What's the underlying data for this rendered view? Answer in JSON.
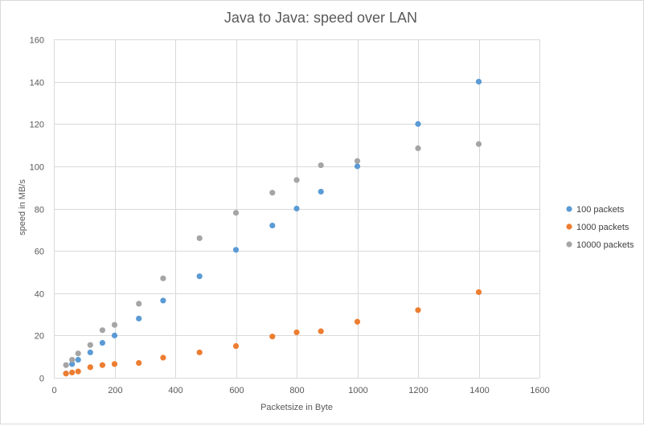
{
  "chart_data": {
    "type": "scatter",
    "title": "Java to Java: speed over LAN",
    "xlabel": "Packetsize in Byte",
    "ylabel": "speed in MB/s",
    "xlim": [
      0,
      1600
    ],
    "ylim": [
      0,
      160
    ],
    "xticks": [
      0,
      200,
      400,
      600,
      800,
      1000,
      1200,
      1400,
      1600
    ],
    "yticks": [
      0,
      20,
      40,
      60,
      80,
      100,
      120,
      140,
      160
    ],
    "grid": "vertical and horizontal",
    "legend_position": "right",
    "series": [
      {
        "name": "100 packets",
        "color": "#5b9bd5",
        "points": [
          [
            40,
            2
          ],
          [
            60,
            6.5
          ],
          [
            80,
            8.5
          ],
          [
            120,
            12
          ],
          [
            160,
            16.5
          ],
          [
            200,
            20
          ],
          [
            280,
            28
          ],
          [
            360,
            36.5
          ],
          [
            480,
            48
          ],
          [
            600,
            60.5
          ],
          [
            720,
            72
          ],
          [
            800,
            80
          ],
          [
            880,
            88
          ],
          [
            1000,
            100
          ],
          [
            1200,
            120
          ],
          [
            1400,
            140
          ]
        ]
      },
      {
        "name": "1000  packets",
        "color": "#ed7d31",
        "points": [
          [
            40,
            2
          ],
          [
            60,
            2.5
          ],
          [
            80,
            3
          ],
          [
            120,
            5
          ],
          [
            160,
            6
          ],
          [
            200,
            6.5
          ],
          [
            280,
            7
          ],
          [
            360,
            9.5
          ],
          [
            480,
            12
          ],
          [
            600,
            15
          ],
          [
            720,
            19.5
          ],
          [
            800,
            21.5
          ],
          [
            880,
            22
          ],
          [
            1000,
            26.5
          ],
          [
            1200,
            32
          ],
          [
            1400,
            40.5
          ]
        ]
      },
      {
        "name": "10000  packets",
        "color": "#a5a5a5",
        "points": [
          [
            40,
            6
          ],
          [
            60,
            8.5
          ],
          [
            80,
            11.5
          ],
          [
            120,
            15.5
          ],
          [
            160,
            22.5
          ],
          [
            200,
            25
          ],
          [
            280,
            35
          ],
          [
            360,
            47
          ],
          [
            480,
            66
          ],
          [
            600,
            78
          ],
          [
            720,
            87.5
          ],
          [
            800,
            93.5
          ],
          [
            880,
            100.5
          ],
          [
            1000,
            102.5
          ],
          [
            1200,
            108.5
          ],
          [
            1400,
            110.5
          ]
        ]
      }
    ]
  }
}
